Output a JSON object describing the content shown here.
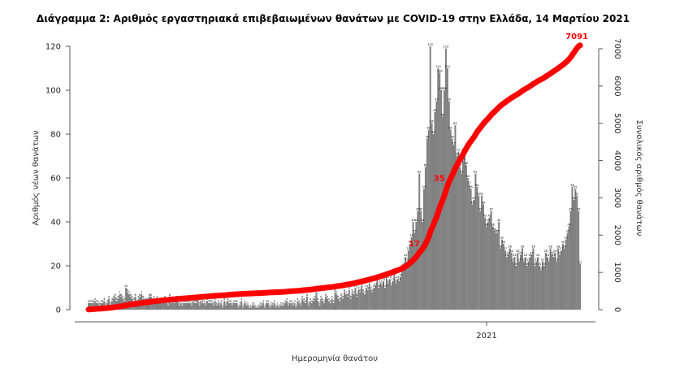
{
  "chart_data": {
    "type": "bar",
    "title": "Διάγραμμα 2: Αριθμός εργαστηριακά επιβεβαιωμένων θανάτων με COVID-19 στην Ελλάδα, 14 Μαρτίου 2021",
    "xlabel": "Ημερομηνία θανάτου",
    "ylabel": "Αριθμός νέων θανάτων",
    "y2label": "Συνολικός αριθμός θανάτων",
    "xtick_labels": [
      "2021"
    ],
    "ylim": [
      0,
      125
    ],
    "yticks": [
      0,
      20,
      40,
      60,
      80,
      100,
      120
    ],
    "y2lim": [
      0,
      7200
    ],
    "y2ticks": [
      0,
      1000,
      2000,
      3000,
      4000,
      5000,
      6000,
      7000
    ],
    "grid": false,
    "colors": {
      "bars": "#808080",
      "cumulative_line": "#ff0000"
    },
    "daily_deaths": [
      3,
      3,
      3,
      3,
      4,
      3,
      3,
      2,
      3,
      3,
      4,
      2,
      3,
      5,
      2,
      4,
      5,
      6,
      4,
      5,
      7,
      6,
      5,
      4,
      10,
      8,
      7,
      6,
      5,
      4,
      6,
      3,
      5,
      6,
      7,
      5,
      4,
      4,
      4,
      6,
      6,
      4,
      5,
      4,
      5,
      4,
      4,
      3,
      4,
      5,
      3,
      2,
      6,
      3,
      4,
      3,
      4,
      5,
      2,
      3,
      2,
      3,
      3,
      3,
      3,
      3,
      2,
      4,
      3,
      3,
      5,
      2,
      4,
      3,
      3,
      2,
      4,
      3,
      3,
      3,
      2,
      4,
      2,
      3,
      2,
      3,
      1,
      4,
      2,
      4,
      3,
      3,
      2,
      3,
      3,
      3,
      1,
      2,
      4,
      1,
      3,
      2,
      2,
      1,
      1,
      2,
      2,
      1,
      1,
      1,
      2,
      2,
      3,
      1,
      3,
      3,
      1,
      2,
      2,
      3,
      1,
      2,
      1,
      2,
      2,
      2,
      3,
      4,
      2,
      3,
      3,
      2,
      3,
      1,
      4,
      3,
      2,
      5,
      4,
      3,
      6,
      2,
      4,
      3,
      4,
      5,
      8,
      4,
      2,
      5,
      4,
      3,
      6,
      5,
      4,
      3,
      5,
      3,
      8,
      7,
      5,
      4,
      6,
      5,
      8,
      7,
      6,
      9,
      5,
      8,
      7,
      10,
      6,
      9,
      8,
      11,
      8,
      7,
      10,
      9,
      12,
      9,
      8,
      10,
      11,
      14,
      10,
      12,
      11,
      13,
      10,
      15,
      12,
      14,
      11,
      13,
      17,
      12,
      14,
      13,
      15,
      18,
      20,
      24,
      22,
      27,
      30,
      33,
      40,
      35,
      40,
      45,
      62,
      45,
      40,
      55,
      65,
      78,
      82,
      120,
      85,
      80,
      90,
      95,
      110,
      108,
      100,
      88,
      100,
      119,
      110,
      95,
      82,
      78,
      75,
      84,
      70,
      72,
      65,
      62,
      68,
      72,
      66,
      60,
      57,
      55,
      48,
      50,
      62,
      56,
      52,
      45,
      52,
      48,
      42,
      38,
      40,
      42,
      45,
      38,
      36,
      35,
      35,
      40,
      28,
      32,
      30,
      27,
      24,
      25,
      28,
      26,
      22,
      24,
      20,
      26,
      22,
      25,
      28,
      22,
      24,
      20,
      22,
      24,
      25,
      28,
      20,
      22,
      24,
      20,
      18,
      22,
      20,
      26,
      24,
      22,
      28,
      25,
      24,
      26,
      22,
      28,
      25,
      27,
      30,
      28,
      32,
      35,
      38,
      45,
      56,
      50,
      55,
      52,
      45,
      21
    ],
    "daily_label_values": [
      3,
      3,
      3,
      3,
      4,
      3,
      3,
      2,
      3,
      3,
      4,
      2,
      3,
      5,
      2,
      4,
      5,
      6,
      4,
      5,
      7,
      6,
      5,
      4,
      10,
      8,
      7,
      6,
      5,
      4,
      6,
      3,
      5,
      6,
      7,
      5,
      4,
      4,
      4,
      6,
      6,
      4,
      5,
      4,
      5,
      4,
      4,
      3,
      4,
      5,
      3,
      2,
      6,
      3,
      4,
      3,
      4,
      5,
      2,
      3,
      2,
      3,
      3,
      3,
      3,
      3,
      2,
      4,
      3,
      3,
      5,
      2,
      4,
      3,
      3,
      2,
      4,
      3,
      3,
      3,
      2,
      4,
      2,
      3,
      2,
      3,
      1,
      4,
      2,
      4,
      3,
      3,
      2,
      3,
      3,
      3,
      1,
      2,
      4,
      1,
      3,
      2,
      2,
      1,
      1,
      2,
      2,
      1,
      1,
      1,
      2,
      2,
      3,
      1,
      3,
      3,
      1,
      2,
      2,
      3,
      1,
      2,
      1,
      2,
      2,
      2,
      3,
      4,
      2,
      3,
      3,
      2,
      3,
      1,
      4,
      3,
      2,
      5,
      4,
      3,
      6,
      2,
      4,
      3,
      4,
      5,
      8,
      4,
      2,
      5,
      4,
      3,
      6,
      5,
      4,
      3,
      5,
      3,
      8,
      7,
      5,
      4,
      6,
      5,
      8,
      7,
      6,
      9,
      5,
      8,
      7,
      10,
      6,
      9,
      8,
      11,
      8,
      7,
      10,
      9,
      12,
      9,
      8,
      10,
      11,
      14,
      10,
      12,
      11,
      13,
      10,
      15,
      12,
      14,
      11,
      13,
      17,
      12,
      14,
      13,
      15,
      18,
      20,
      24,
      22,
      27,
      30,
      33,
      40,
      35,
      40,
      45,
      62,
      45,
      40,
      55,
      65,
      78,
      82,
      120,
      85,
      80,
      90,
      95,
      110,
      108,
      100,
      88,
      100,
      119,
      110,
      95,
      82,
      78,
      75,
      84,
      70,
      72,
      65,
      62,
      68,
      72,
      66,
      60,
      57,
      55,
      48,
      50,
      62,
      56,
      52,
      45,
      52,
      48,
      42,
      38,
      40,
      42,
      45,
      38,
      36,
      35,
      35,
      40,
      28,
      32,
      30,
      27,
      24,
      25,
      28,
      26,
      22,
      24,
      20,
      26,
      22,
      25,
      28,
      22,
      24,
      20,
      22,
      24,
      25,
      28,
      20,
      22,
      24,
      20,
      18,
      22,
      20,
      26,
      24,
      22,
      28,
      25,
      24,
      26,
      22,
      28,
      25,
      27,
      30,
      28,
      32,
      35,
      38,
      45,
      56,
      50,
      55,
      52,
      45,
      21
    ],
    "series": [
      {
        "values_ref": "daily_deaths",
        "axis": "left",
        "kind": "bar"
      },
      {
        "kind": "line",
        "axis": "right",
        "values_ref": "daily_deaths",
        "cumulative": true
      }
    ],
    "annotations": [
      {
        "text": "17",
        "anchor": "cumulative",
        "series_value": 1700
      },
      {
        "text": "35",
        "anchor": "cumulative",
        "series_value": 3500
      },
      {
        "text": "7091",
        "anchor": "cumulative",
        "series_value": 7091
      }
    ]
  }
}
